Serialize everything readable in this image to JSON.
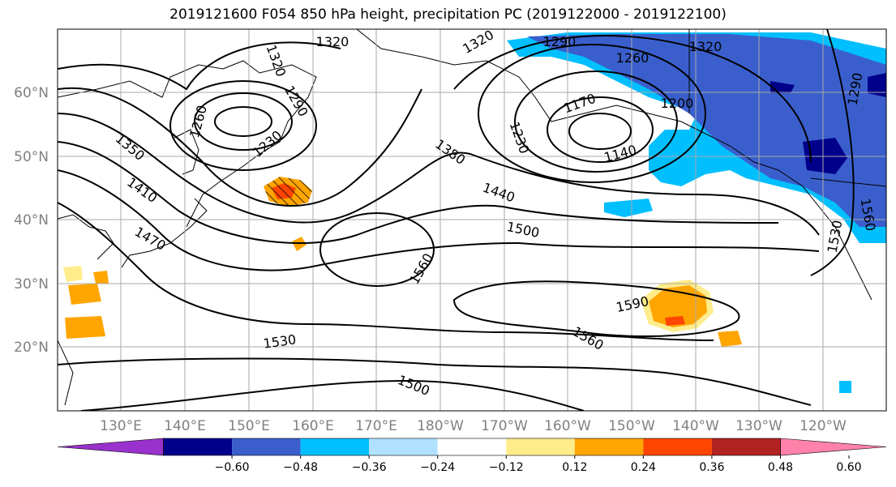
{
  "title": "2019121600 F054 850 hPa height, precipitation PC (2019122000 - 2019122100)",
  "lat_labels": [
    "60°N",
    "50°N",
    "40°N",
    "30°N",
    "20°N"
  ],
  "lon_labels": [
    "130°E",
    "140°E",
    "150°E",
    "160°E",
    "170°E",
    "180°W",
    "170°W",
    "160°W",
    "150°W",
    "140°W",
    "130°W",
    "120°W"
  ],
  "contour_labels": [
    "1320",
    "1320",
    "1320",
    "1320",
    "1290",
    "1290",
    "1260",
    "1260",
    "1230",
    "1230",
    "1200",
    "1170",
    "1140",
    "1350",
    "1410",
    "1470",
    "1380",
    "1440",
    "1500",
    "1560",
    "1590",
    "1560",
    "1530",
    "1500",
    "1530",
    "1290",
    "1560"
  ],
  "colorbar": {
    "ticks": [
      "−0.60",
      "−0.48",
      "−0.36",
      "−0.24",
      "−0.12",
      "0.12",
      "0.24",
      "0.36",
      "0.48",
      "0.60"
    ],
    "colors": [
      "#9932cc",
      "#00008b",
      "#3a5fcd",
      "#00bfff",
      "#b0e2ff",
      "#ffffff",
      "#ffec8b",
      "#ffa500",
      "#ff4500",
      "#b22222",
      "#ff82ab"
    ]
  }
}
